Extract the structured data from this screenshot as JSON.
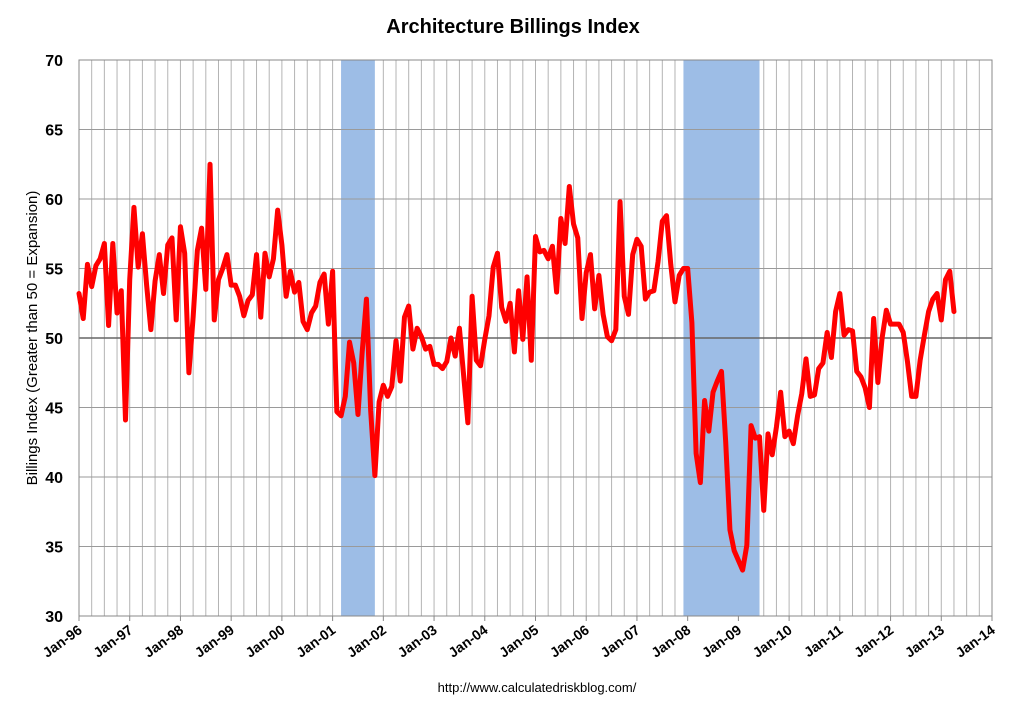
{
  "chart_data": {
    "type": "line",
    "title": "Architecture Billings Index",
    "xlabel": "",
    "ylabel": "Billings Index (Greater than 50 = Expansion)",
    "source": "http://www.calculatedriskblog.com/",
    "ylim": [
      30,
      70
    ],
    "yticks": [
      30,
      35,
      40,
      45,
      50,
      55,
      60,
      65,
      70
    ],
    "xlim": [
      "1996-01",
      "2014-01"
    ],
    "xticks": [
      "Jan-96",
      "Jan-97",
      "Jan-98",
      "Jan-99",
      "Jan-00",
      "Jan-01",
      "Jan-02",
      "Jan-03",
      "Jan-04",
      "Jan-05",
      "Jan-06",
      "Jan-07",
      "Jan-08",
      "Jan-09",
      "Jan-10",
      "Jan-11",
      "Jan-12",
      "Jan-13",
      "Jan-14"
    ],
    "grid": true,
    "reference_line": 50,
    "colors": {
      "series": "#ff0000",
      "recession": "#9dbde6",
      "grid": "#b4b4b4"
    },
    "recessions": [
      {
        "start": "2001-03",
        "end": "2001-11"
      },
      {
        "start": "2007-12",
        "end": "2009-06"
      }
    ],
    "series": [
      {
        "start": "1996-01",
        "values": [
          53.2,
          51.4,
          55.3,
          53.7,
          55.2,
          55.7,
          56.8,
          50.9,
          56.8,
          51.8,
          53.4,
          44.1,
          54.2,
          59.4,
          55.1,
          57.5,
          53.8,
          50.6,
          54.1,
          56.0,
          53.2,
          56.7,
          57.2,
          51.3,
          58.0,
          56.1,
          47.5,
          51.5,
          56.3,
          57.9,
          53.5,
          62.5,
          51.3,
          54.2,
          55.0,
          56.0,
          53.8,
          53.8,
          53.0,
          51.6,
          52.7,
          53.1,
          56.0,
          51.5,
          56.1,
          54.4,
          55.7,
          59.2,
          56.7,
          53.0,
          54.8,
          53.3,
          54.0,
          51.2,
          50.6,
          51.8,
          52.3,
          54.0,
          54.6,
          51.0,
          54.8,
          44.7,
          44.4,
          45.8,
          49.7,
          48.2,
          44.5,
          49.0,
          52.8,
          44.8,
          40.1,
          45.4,
          46.6,
          45.8,
          46.5,
          49.8,
          46.9,
          51.5,
          52.3,
          49.2,
          50.7,
          50.1,
          49.2,
          49.4,
          48.1,
          48.1,
          47.8,
          48.3,
          50.0,
          48.7,
          50.7,
          47.3,
          43.9,
          53.0,
          48.4,
          48.0,
          49.9,
          51.6,
          55.1,
          56.1,
          52.2,
          51.2,
          52.5,
          49.0,
          53.4,
          49.9,
          54.4,
          48.4,
          57.3,
          56.2,
          56.3,
          55.7,
          56.6,
          53.3,
          58.6,
          56.8,
          60.9,
          58.2,
          57.2,
          51.4,
          54.7,
          56.0,
          52.1,
          54.5,
          51.7,
          50.1,
          49.8,
          50.6,
          59.8,
          53.0,
          51.7,
          56.0,
          57.1,
          56.6,
          52.8,
          53.3,
          53.4,
          55.5,
          58.4,
          58.8,
          55.3,
          52.6,
          54.5,
          55.0,
          55.0,
          51.1,
          41.7,
          39.6,
          45.5,
          43.3,
          46.1,
          46.9,
          47.6,
          42.5,
          36.2,
          34.7,
          34.0,
          33.3,
          35.1,
          43.7,
          42.8,
          42.9,
          37.6,
          43.1,
          41.6,
          43.6,
          46.1,
          42.9,
          43.3,
          42.4,
          44.4,
          46.0,
          48.5,
          45.8,
          45.9,
          47.8,
          48.2,
          50.4,
          48.6,
          51.9,
          53.2,
          50.2,
          50.6,
          50.5,
          47.6,
          47.2,
          46.4,
          45.0,
          51.4,
          46.8,
          50.0,
          52.0,
          51.0,
          51.0,
          51.0,
          50.4,
          48.3,
          45.8,
          45.8,
          48.4,
          50.2,
          51.9,
          52.8,
          53.2,
          51.3,
          54.2,
          54.8,
          51.9
        ]
      }
    ]
  }
}
